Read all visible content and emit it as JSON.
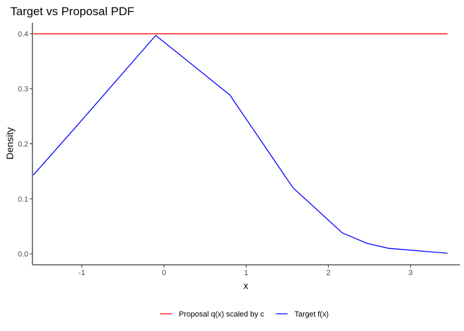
{
  "chart_data": {
    "type": "line",
    "title": "Target vs Proposal PDF",
    "xlabel": "x",
    "ylabel": "Density",
    "xlim": [
      -1.6,
      3.6
    ],
    "ylim": [
      -0.02,
      0.42
    ],
    "x_ticks": [
      -1,
      0,
      1,
      2,
      3
    ],
    "y_ticks": [
      0.0,
      0.1,
      0.2,
      0.3,
      0.4
    ],
    "x_tick_labels": [
      "-1",
      "0",
      "1",
      "2",
      "3"
    ],
    "y_tick_labels": [
      "0.0",
      "0.1",
      "0.2",
      "0.3",
      "0.4"
    ],
    "grid": false,
    "legend_position": "bottom",
    "series": [
      {
        "name": "Proposal q(x) scaled by c",
        "color": "#ff0000",
        "x": [
          -1.59,
          3.45
        ],
        "y": [
          0.4,
          0.4
        ]
      },
      {
        "name": "Target f(x)",
        "color": "#0000ff",
        "x": [
          -1.59,
          -1.04,
          -0.1,
          0.8,
          1.57,
          2.17,
          2.47,
          2.73,
          3.45
        ],
        "y": [
          0.143,
          0.236,
          0.397,
          0.289,
          0.12,
          0.038,
          0.019,
          0.01,
          0.001
        ]
      }
    ]
  }
}
